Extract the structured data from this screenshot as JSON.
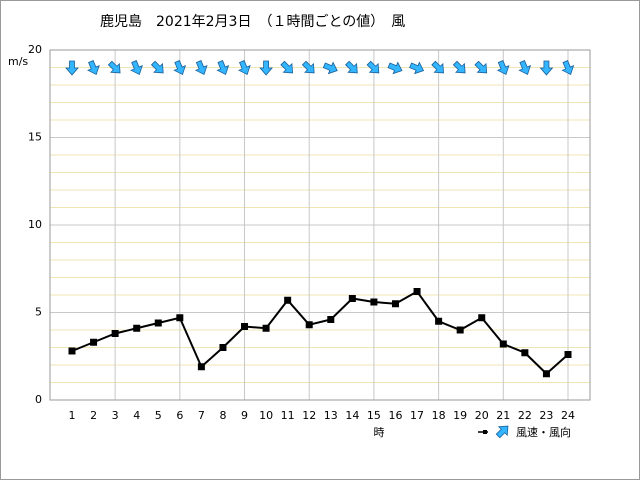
{
  "chart_data": {
    "type": "line",
    "title": "鹿児島　2021年2月3日　（１時間ごとの値）　風",
    "y_label": "m/s",
    "x_label": "時",
    "categories": [
      "1",
      "2",
      "3",
      "4",
      "5",
      "6",
      "7",
      "8",
      "9",
      "10",
      "11",
      "12",
      "13",
      "14",
      "15",
      "16",
      "17",
      "18",
      "19",
      "20",
      "21",
      "22",
      "23",
      "24"
    ],
    "series": [
      {
        "name": "風速・風向",
        "color": "#000000",
        "arrow_color": "#33b5ff",
        "values": [
          2.8,
          3.3,
          3.8,
          4.1,
          4.4,
          4.7,
          1.9,
          3.0,
          4.2,
          4.1,
          5.7,
          4.3,
          4.6,
          5.8,
          5.6,
          5.5,
          6.2,
          4.5,
          4.0,
          4.7,
          3.2,
          2.7,
          1.5,
          2.6
        ],
        "directions": [
          0,
          337.5,
          315,
          337.5,
          315,
          337.5,
          337.5,
          337.5,
          337.5,
          0,
          315,
          315,
          292.5,
          315,
          315,
          292.5,
          292.5,
          315,
          315,
          315,
          337.5,
          337.5,
          0,
          337.5
        ]
      }
    ],
    "ylim": [
      0,
      20
    ],
    "yticks": [
      0,
      5,
      10,
      15,
      20
    ],
    "grid": true
  }
}
